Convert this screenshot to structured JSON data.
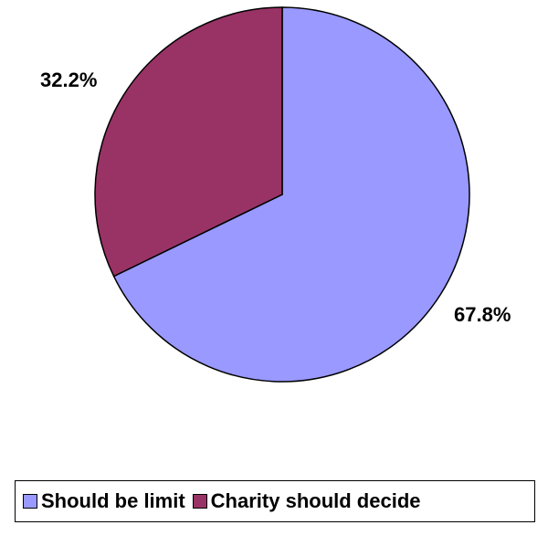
{
  "chart_data": {
    "type": "pie",
    "slices": [
      {
        "name": "Should be limit",
        "value": 67.8,
        "label": "67.8%",
        "color": "#9999ff"
      },
      {
        "name": "Charity should decide",
        "value": 32.2,
        "label": "32.2%",
        "color": "#993366"
      }
    ],
    "legend": {
      "position": "bottom",
      "items": [
        "Should be limit",
        "Charity should decide"
      ]
    },
    "start_angle": "12 o'clock",
    "direction": "clockwise"
  }
}
